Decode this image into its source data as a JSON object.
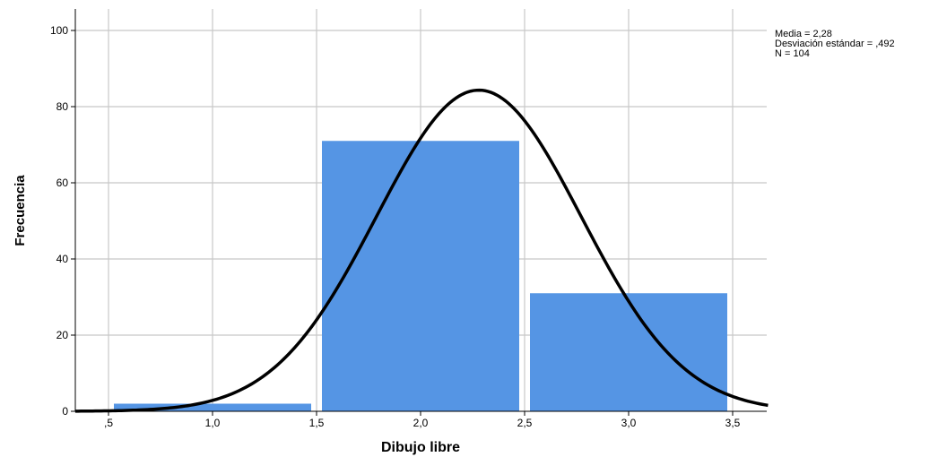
{
  "chart_data": {
    "type": "bar",
    "subtype": "histogram",
    "xlabel": "Dibujo libre",
    "ylabel": "Frecuencia",
    "xlim": [
      0.34,
      3.67
    ],
    "ylim": [
      0,
      105
    ],
    "x_ticks": [
      {
        "value": 0.5,
        "label": ",5"
      },
      {
        "value": 1.0,
        "label": "1,0"
      },
      {
        "value": 1.5,
        "label": "1,5"
      },
      {
        "value": 2.0,
        "label": "2,0"
      },
      {
        "value": 2.5,
        "label": "2,5"
      },
      {
        "value": 3.0,
        "label": "3,0"
      },
      {
        "value": 3.5,
        "label": "3,5"
      }
    ],
    "y_ticks": [
      {
        "value": 0,
        "label": "0"
      },
      {
        "value": 20,
        "label": "20"
      },
      {
        "value": 40,
        "label": "40"
      },
      {
        "value": 60,
        "label": "60"
      },
      {
        "value": 80,
        "label": "80"
      },
      {
        "value": 100,
        "label": "100"
      }
    ],
    "bins": [
      {
        "start": 0.5,
        "end": 1.5,
        "count": 2
      },
      {
        "start": 1.5,
        "end": 2.5,
        "count": 71
      },
      {
        "start": 2.5,
        "end": 3.5,
        "count": 31
      }
    ],
    "normal_curve": {
      "mean": 2.28,
      "sd": 0.492,
      "n": 104,
      "bin_width": 1.0
    },
    "stats": {
      "mean_label": "Media = 2,28",
      "sd_label": "Desviación estándar = ,492",
      "n_label": "N = 104"
    },
    "grid": true,
    "bar_color": "#5595e4",
    "curve_color": "#000000",
    "grid_color": "#c8c8c8"
  }
}
